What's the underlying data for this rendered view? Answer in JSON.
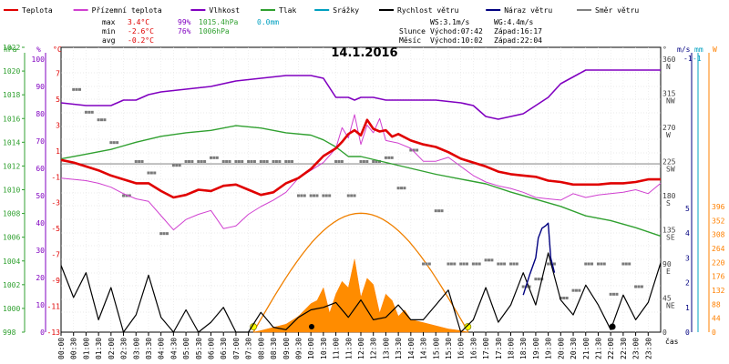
{
  "chart_data": {
    "type": "line",
    "title": "14.1.2016",
    "legend": [
      {
        "name": "Teplota",
        "color": "#e00000"
      },
      {
        "name": "Přízemní teplota",
        "color": "#d040d0"
      },
      {
        "name": "Vlhkost",
        "color": "#8000c0"
      },
      {
        "name": "Tlak",
        "color": "#30a030"
      },
      {
        "name": "Srážky",
        "color": "#00a0c0"
      },
      {
        "name": "Rychlost větru",
        "color": "#000000"
      },
      {
        "name": "Náraz větru",
        "color": "#000080"
      },
      {
        "name": "Směr větru",
        "color": "#808080"
      }
    ],
    "stats": {
      "max": {
        "label": "max",
        "temp": "3.4°C",
        "hum": "99%",
        "press": "1015.4hPa",
        "rain": "0.0mm"
      },
      "min": {
        "label": "min",
        "temp": "-2.6°C",
        "hum": "76%",
        "press": "1006hPa"
      },
      "avg": {
        "label": "avg",
        "temp": "-0.2°C"
      }
    },
    "wind_info": {
      "ws": "WS:3.1m/s",
      "wg": "WG:4.4m/s"
    },
    "sun": {
      "label": "Slunce",
      "rise": "Východ:07:42",
      "set": "Západ:16:17"
    },
    "moon": {
      "label": "Měsíc",
      "rise": "Východ:10:02",
      "set": "Západ:22:04"
    },
    "axes": {
      "pressure": {
        "unit": "hPa",
        "ticks": [
          "1022",
          "1020",
          "1018",
          "1016",
          "1014",
          "1012",
          "1010",
          "1008",
          "1006",
          "1004",
          "1002",
          "1000",
          "998"
        ],
        "range": [
          998,
          1022
        ]
      },
      "humidity": {
        "unit": "%",
        "ticks": [
          "100",
          "90",
          "80",
          "70",
          "60",
          "50",
          "40",
          "30",
          "20",
          "10",
          "0"
        ],
        "range": [
          0,
          100
        ]
      },
      "temperature": {
        "unit": "°C",
        "ticks": [
          "7",
          "5",
          "3",
          "1",
          "-1",
          "-3",
          "-5",
          "-7",
          "-9",
          "-11",
          "-13"
        ],
        "range": [
          -13,
          9
        ]
      },
      "direction": {
        "unit": "°",
        "ticks": [
          "360",
          "315",
          "270",
          "225",
          "180",
          "135",
          "90",
          "45",
          "0"
        ],
        "compass": [
          "N",
          "NW",
          "W",
          "SW",
          "S",
          "SE",
          "E",
          "NE",
          ""
        ]
      },
      "wind": {
        "unit": "m/s",
        "ticks": [
          "5",
          "4",
          "3",
          "2",
          "1",
          "0"
        ],
        "top": "-1"
      },
      "rain": {
        "unit": "mm",
        "top": "-1"
      },
      "solar": {
        "unit": "W",
        "ticks": [
          "396",
          "352",
          "308",
          "264",
          "220",
          "176",
          "132",
          "88",
          "44",
          "0"
        ]
      },
      "x": {
        "label": "čas",
        "ticks": [
          "00:00",
          "00:30",
          "01:00",
          "01:30",
          "02:00",
          "02:30",
          "03:00",
          "03:30",
          "04:00",
          "04:30",
          "05:00",
          "05:30",
          "06:00",
          "06:30",
          "07:00",
          "07:30",
          "08:00",
          "08:30",
          "09:00",
          "09:30",
          "10:00",
          "10:30",
          "11:00",
          "11:30",
          "12:00",
          "12:30",
          "13:00",
          "13:30",
          "14:00",
          "14:30",
          "15:00",
          "15:30",
          "16:00",
          "16:30",
          "17:00",
          "17:30",
          "18:00",
          "18:30",
          "19:00",
          "19:30",
          "20:00",
          "20:30",
          "21:00",
          "21:30",
          "22:00",
          "22:30",
          "23:00",
          "23:30"
        ]
      }
    },
    "series": {
      "temperature": {
        "x": [
          0,
          0.5,
          1,
          1.5,
          2,
          2.5,
          3,
          3.5,
          4,
          4.5,
          5,
          5.5,
          6,
          6.5,
          7,
          7.5,
          8,
          8.5,
          9,
          9.5,
          10,
          10.5,
          11,
          11.25,
          11.5,
          11.75,
          12,
          12.25,
          12.5,
          12.75,
          13,
          13.25,
          13.5,
          14,
          14.5,
          15,
          15.5,
          16,
          16.5,
          17,
          17.5,
          18,
          18.5,
          19,
          19.5,
          20,
          20.5,
          21,
          21.5,
          22,
          22.5,
          23,
          23.5,
          24
        ],
        "y": [
          0.3,
          0.1,
          -0.2,
          -0.5,
          -0.9,
          -1.2,
          -1.5,
          -1.5,
          -2.1,
          -2.6,
          -2.4,
          -2.0,
          -2.1,
          -1.7,
          -1.6,
          -2.0,
          -2.4,
          -2.2,
          -1.5,
          -1.1,
          -0.4,
          0.6,
          1.2,
          1.7,
          2.3,
          2.6,
          2.2,
          3.4,
          2.7,
          2.5,
          2.6,
          2.1,
          2.3,
          1.8,
          1.5,
          1.3,
          0.9,
          0.4,
          0.1,
          -0.2,
          -0.6,
          -0.8,
          -0.9,
          -1.0,
          -1.3,
          -1.4,
          -1.6,
          -1.6,
          -1.6,
          -1.5,
          -1.5,
          -1.4,
          -1.2,
          -1.2
        ]
      },
      "ground_temperature": {
        "x": [
          0,
          0.5,
          1,
          1.5,
          2,
          2.5,
          3,
          3.5,
          4,
          4.5,
          5,
          5.5,
          6,
          6.5,
          7,
          7.5,
          8,
          8.5,
          9,
          9.5,
          10,
          10.5,
          11,
          11.25,
          11.5,
          11.75,
          12,
          12.25,
          12.5,
          12.75,
          13,
          13.5,
          14,
          14.5,
          15,
          15.5,
          16,
          16.5,
          17,
          17.5,
          18,
          18.5,
          19,
          19.5,
          20,
          20.5,
          21,
          21.5,
          22,
          22.5,
          23,
          23.5,
          24
        ],
        "y": [
          -1.1,
          -1.2,
          -1.3,
          -1.5,
          -1.8,
          -2.3,
          -2.7,
          -2.9,
          -4.0,
          -5.1,
          -4.3,
          -3.9,
          -3.6,
          -5.0,
          -4.8,
          -3.9,
          -3.3,
          -2.8,
          -2.2,
          -1.1,
          -0.5,
          0.1,
          1.2,
          2.8,
          2.0,
          3.8,
          1.5,
          3.0,
          2.4,
          3.5,
          1.8,
          1.6,
          1.2,
          0.2,
          0.2,
          0.5,
          -0.2,
          -0.9,
          -1.4,
          -1.7,
          -1.9,
          -2.2,
          -2.6,
          -2.7,
          -2.8,
          -2.3,
          -2.6,
          -2.4,
          -2.3,
          -2.2,
          -2.0,
          -2.3,
          -1.5
        ]
      },
      "humidity": {
        "x": [
          0,
          1,
          2,
          2.5,
          3,
          3.5,
          4,
          5,
          6,
          7,
          8,
          9,
          10,
          10.5,
          11,
          11.5,
          11.75,
          12,
          12.5,
          13,
          14,
          15,
          16,
          16.5,
          17,
          17.5,
          18,
          18.5,
          19,
          19.5,
          20,
          21,
          22,
          23,
          24
        ],
        "y": [
          84,
          83,
          83,
          85,
          85,
          87,
          88,
          89,
          90,
          92,
          93,
          94,
          94,
          93,
          86,
          86,
          85,
          86,
          86,
          85,
          85,
          85,
          84,
          83,
          79,
          78,
          79,
          80,
          83,
          86,
          91,
          96,
          96,
          96,
          96
        ]
      },
      "pressure": {
        "x": [
          0,
          1,
          2,
          3,
          4,
          5,
          6,
          7,
          8,
          9,
          10,
          10.5,
          11,
          11.5,
          12,
          13,
          14,
          15,
          16,
          17,
          18,
          19,
          20,
          21,
          22,
          23,
          24
        ],
        "y": [
          1012.6,
          1013.0,
          1013.4,
          1014.0,
          1014.5,
          1014.8,
          1015.0,
          1015.4,
          1015.2,
          1014.8,
          1014.6,
          1014.2,
          1013.6,
          1012.8,
          1012.8,
          1012.3,
          1011.8,
          1011.3,
          1010.9,
          1010.5,
          1009.8,
          1009.2,
          1008.6,
          1007.8,
          1007.4,
          1006.8,
          1006.1
        ]
      },
      "wind_speed": {
        "x": [
          0,
          0.5,
          1,
          1.5,
          2,
          2.5,
          3,
          3.5,
          4,
          4.5,
          5,
          5.5,
          6,
          6.5,
          7,
          7.5,
          8,
          8.5,
          9,
          9.5,
          10,
          10.5,
          11,
          11.5,
          12,
          12.5,
          13,
          13.5,
          14,
          14.5,
          15,
          15.5,
          16,
          16.5,
          17,
          17.5,
          18,
          18.5,
          19,
          19.5,
          20,
          20.5,
          21,
          21.5,
          22,
          22.5,
          23,
          23.5,
          24
        ],
        "y": [
          2.7,
          1.4,
          2.4,
          0.5,
          1.8,
          0,
          0.7,
          2.3,
          0.6,
          0,
          0.9,
          0,
          0.4,
          1.0,
          0,
          0,
          0.8,
          0.2,
          0.1,
          0.6,
          0.9,
          1.0,
          1.2,
          0.6,
          1.3,
          0.5,
          0.6,
          1.1,
          0.5,
          0.5,
          1.1,
          1.7,
          0,
          0.5,
          1.8,
          0.4,
          1.1,
          2.4,
          1.1,
          3.2,
          1.3,
          0.7,
          1.9,
          1.1,
          0.1,
          1.5,
          0.5,
          1.2,
          2.8
        ]
      },
      "wind_gust": {
        "x": [
          18.5,
          18.75,
          19,
          19.1,
          19.25,
          19.4,
          19.5,
          19.6,
          19.75
        ],
        "y": [
          1.5,
          2.3,
          3.0,
          3.8,
          4.2,
          4.3,
          4.4,
          3.0,
          2.4
        ]
      },
      "wind_direction": {
        "x": [
          0.5,
          1,
          1.5,
          2,
          2.5,
          3,
          3.5,
          4,
          4.5,
          5,
          5.5,
          6,
          6.5,
          7,
          7.5,
          8,
          8.5,
          9,
          9.5,
          10,
          10.5,
          11,
          11.5,
          12,
          12.5,
          13,
          13.5,
          14,
          14.5,
          15,
          15.5,
          16,
          16.5,
          17,
          17.5,
          18,
          18.5,
          19,
          19.5,
          20,
          20.5,
          21,
          21.5,
          22,
          22.5,
          23
        ],
        "y": [
          320,
          290,
          280,
          250,
          180,
          225,
          210,
          130,
          220,
          225,
          225,
          230,
          225,
          225,
          225,
          225,
          225,
          225,
          180,
          180,
          180,
          225,
          180,
          225,
          225,
          230,
          190,
          240,
          90,
          160,
          90,
          90,
          90,
          95,
          90,
          90,
          60,
          70,
          90,
          45,
          55,
          90,
          90,
          50,
          90,
          60
        ]
      },
      "solar": {
        "x": [
          7.7,
          8,
          8.5,
          9,
          9.5,
          10,
          10.25,
          10.5,
          10.75,
          11,
          11.25,
          11.5,
          11.75,
          12,
          12.25,
          12.5,
          12.75,
          13,
          13.25,
          13.5,
          13.75,
          14,
          14.5,
          15,
          15.5,
          16,
          16.3
        ],
        "y": [
          0,
          5,
          15,
          25,
          50,
          90,
          100,
          140,
          60,
          120,
          160,
          140,
          230,
          110,
          170,
          150,
          60,
          120,
          100,
          50,
          70,
          40,
          30,
          20,
          10,
          5,
          0
        ]
      },
      "solar_clear": {
        "x": [
          7.7,
          8,
          9,
          10,
          11,
          12,
          13,
          14,
          15,
          16,
          16.3
        ],
        "y": [
          0,
          60,
          180,
          290,
          360,
          375,
          360,
          290,
          180,
          40,
          0
        ]
      }
    }
  }
}
